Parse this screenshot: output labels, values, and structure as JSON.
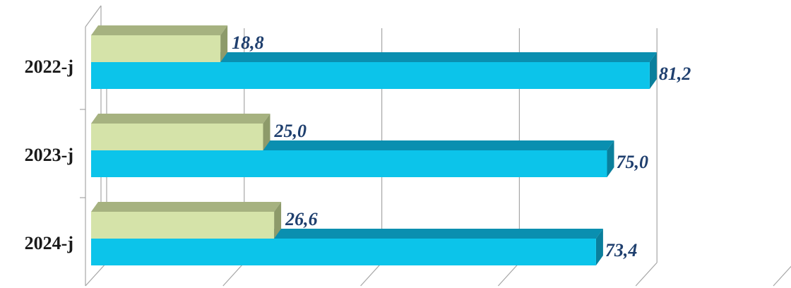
{
  "chart_data": {
    "type": "bar",
    "orientation": "horizontal",
    "style": "3d",
    "categories": [
      "2022-j",
      "2023-j",
      "2024-j"
    ],
    "series": [
      {
        "values": [
          18.8,
          25.0,
          26.6
        ],
        "value_labels": [
          "18,8",
          "25,0",
          "26,6"
        ]
      },
      {
        "values": [
          81.2,
          75.0,
          73.4
        ],
        "value_labels": [
          "81,2",
          "75,0",
          "73,4"
        ]
      }
    ],
    "xlim": [
      0,
      100
    ],
    "grid": true,
    "legend": "none"
  },
  "colors": {
    "series_1_front": "#d5e3a9",
    "series_1_top": "#a6b280",
    "series_1_side": "#8d9a6a",
    "series_2_front": "#0cc4ea",
    "series_2_top": "#0a8fb0",
    "series_2_side": "#0a7f9c",
    "label_text": "#1f3f6e",
    "grid": "#a6a6a6"
  }
}
